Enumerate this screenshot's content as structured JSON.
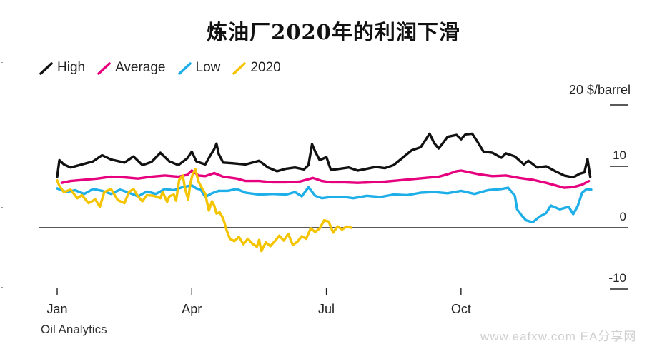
{
  "title": "炼油厂2020年的利润下滑",
  "source": "Oil Analytics",
  "watermark": "www.eafxw.com  EA分享网",
  "chart_data": {
    "type": "line",
    "unit_label": "20 $/barrel",
    "ylim": [
      -12,
      21
    ],
    "yticks": [
      {
        "value": 20,
        "label": ""
      },
      {
        "value": 10,
        "label": "10"
      },
      {
        "value": 0,
        "label": "0"
      },
      {
        "value": -10,
        "label": "-10"
      }
    ],
    "xlim": [
      0,
      12
    ],
    "xticks": [
      {
        "value": 0,
        "label": "Jan"
      },
      {
        "value": 3,
        "label": "Apr"
      },
      {
        "value": 6,
        "label": "Jul"
      },
      {
        "value": 9,
        "label": "Oct"
      }
    ],
    "series": [
      {
        "name": "High",
        "color": "#111111",
        "points": [
          [
            0,
            8.3
          ],
          [
            0.05,
            11
          ],
          [
            0.15,
            10.3
          ],
          [
            0.3,
            9.8
          ],
          [
            0.5,
            10.2
          ],
          [
            0.8,
            10.8
          ],
          [
            1.0,
            11.8
          ],
          [
            1.2,
            11.1
          ],
          [
            1.5,
            10.6
          ],
          [
            1.7,
            11.6
          ],
          [
            1.9,
            10.2
          ],
          [
            2.1,
            10.7
          ],
          [
            2.3,
            12.2
          ],
          [
            2.5,
            10.8
          ],
          [
            2.7,
            10.2
          ],
          [
            2.9,
            11.3
          ],
          [
            3.0,
            12.4
          ],
          [
            3.1,
            10.8
          ],
          [
            3.3,
            10.3
          ],
          [
            3.4,
            11.6
          ],
          [
            3.5,
            12.8
          ],
          [
            3.55,
            13.7
          ],
          [
            3.6,
            12.0
          ],
          [
            3.7,
            10.6
          ],
          [
            3.9,
            10.5
          ],
          [
            4.2,
            10.3
          ],
          [
            4.5,
            10.9
          ],
          [
            4.7,
            9.8
          ],
          [
            4.9,
            9.2
          ],
          [
            5.1,
            9.6
          ],
          [
            5.3,
            9.8
          ],
          [
            5.5,
            9.5
          ],
          [
            5.6,
            10.2
          ],
          [
            5.68,
            13.6
          ],
          [
            5.75,
            12.4
          ],
          [
            5.85,
            11.0
          ],
          [
            6.0,
            11.5
          ],
          [
            6.1,
            9.4
          ],
          [
            6.3,
            9.6
          ],
          [
            6.5,
            9.8
          ],
          [
            6.7,
            9.3
          ],
          [
            6.9,
            9.6
          ],
          [
            7.1,
            9.9
          ],
          [
            7.3,
            9.7
          ],
          [
            7.5,
            10.2
          ],
          [
            7.7,
            11.4
          ],
          [
            7.9,
            12.6
          ],
          [
            8.1,
            13.1
          ],
          [
            8.3,
            15.3
          ],
          [
            8.4,
            13.8
          ],
          [
            8.5,
            12.9
          ],
          [
            8.6,
            13.8
          ],
          [
            8.7,
            14.8
          ],
          [
            8.9,
            15.1
          ],
          [
            9.0,
            14.4
          ],
          [
            9.1,
            15.2
          ],
          [
            9.25,
            15.3
          ],
          [
            9.4,
            13.6
          ],
          [
            9.5,
            12.4
          ],
          [
            9.7,
            12.2
          ],
          [
            9.9,
            11.4
          ],
          [
            10.0,
            12.1
          ],
          [
            10.2,
            11.6
          ],
          [
            10.4,
            10.3
          ],
          [
            10.5,
            10.9
          ],
          [
            10.7,
            9.8
          ],
          [
            10.9,
            10.0
          ],
          [
            11.1,
            9.2
          ],
          [
            11.3,
            8.5
          ],
          [
            11.5,
            8.2
          ],
          [
            11.65,
            8.8
          ],
          [
            11.75,
            9.0
          ],
          [
            11.82,
            11.2
          ],
          [
            11.88,
            8.3
          ]
        ]
      },
      {
        "name": "Average",
        "color": "#e6007e",
        "points": [
          [
            0.1,
            7.3
          ],
          [
            0.3,
            7.6
          ],
          [
            0.6,
            7.8
          ],
          [
            0.9,
            8.0
          ],
          [
            1.2,
            8.3
          ],
          [
            1.5,
            8.2
          ],
          [
            1.8,
            8.0
          ],
          [
            2.1,
            8.3
          ],
          [
            2.4,
            8.5
          ],
          [
            2.7,
            8.3
          ],
          [
            2.9,
            8.6
          ],
          [
            3.0,
            9.3
          ],
          [
            3.15,
            8.5
          ],
          [
            3.3,
            8.4
          ],
          [
            3.5,
            8.9
          ],
          [
            3.7,
            8.3
          ],
          [
            4.0,
            8.0
          ],
          [
            4.2,
            7.6
          ],
          [
            4.5,
            7.6
          ],
          [
            4.8,
            7.4
          ],
          [
            5.1,
            7.4
          ],
          [
            5.4,
            7.5
          ],
          [
            5.7,
            8.1
          ],
          [
            5.9,
            7.6
          ],
          [
            6.1,
            7.4
          ],
          [
            6.4,
            7.4
          ],
          [
            6.7,
            7.3
          ],
          [
            7.0,
            7.4
          ],
          [
            7.3,
            7.5
          ],
          [
            7.6,
            7.7
          ],
          [
            7.9,
            7.9
          ],
          [
            8.2,
            8.1
          ],
          [
            8.5,
            8.3
          ],
          [
            8.7,
            8.7
          ],
          [
            8.9,
            9.2
          ],
          [
            9.0,
            9.3
          ],
          [
            9.2,
            9.0
          ],
          [
            9.4,
            8.7
          ],
          [
            9.7,
            8.4
          ],
          [
            10.0,
            8.5
          ],
          [
            10.3,
            8.1
          ],
          [
            10.6,
            7.8
          ],
          [
            10.9,
            7.3
          ],
          [
            11.1,
            6.9
          ],
          [
            11.3,
            6.5
          ],
          [
            11.5,
            6.6
          ],
          [
            11.7,
            7.0
          ],
          [
            11.85,
            7.6
          ]
        ]
      },
      {
        "name": "Low",
        "color": "#1eaee8",
        "points": [
          [
            0,
            6.4
          ],
          [
            0.2,
            5.8
          ],
          [
            0.4,
            6.1
          ],
          [
            0.6,
            5.5
          ],
          [
            0.8,
            6.3
          ],
          [
            1.0,
            6.0
          ],
          [
            1.2,
            5.5
          ],
          [
            1.4,
            6.2
          ],
          [
            1.6,
            5.7
          ],
          [
            1.8,
            5.1
          ],
          [
            2.0,
            5.9
          ],
          [
            2.2,
            5.5
          ],
          [
            2.4,
            6.3
          ],
          [
            2.6,
            6.1
          ],
          [
            2.8,
            6.6
          ],
          [
            3.0,
            6.9
          ],
          [
            3.1,
            6.4
          ],
          [
            3.2,
            6.2
          ],
          [
            3.3,
            5.0
          ],
          [
            3.45,
            5.6
          ],
          [
            3.6,
            6.0
          ],
          [
            3.8,
            6.0
          ],
          [
            4.0,
            6.3
          ],
          [
            4.2,
            5.7
          ],
          [
            4.5,
            5.4
          ],
          [
            4.8,
            5.5
          ],
          [
            5.1,
            5.4
          ],
          [
            5.3,
            5.8
          ],
          [
            5.45,
            5.1
          ],
          [
            5.6,
            6.6
          ],
          [
            5.75,
            5.2
          ],
          [
            5.9,
            4.8
          ],
          [
            6.1,
            5.0
          ],
          [
            6.4,
            5.0
          ],
          [
            6.6,
            4.8
          ],
          [
            6.9,
            5.2
          ],
          [
            7.2,
            5.0
          ],
          [
            7.5,
            5.4
          ],
          [
            7.8,
            5.3
          ],
          [
            8.1,
            5.7
          ],
          [
            8.4,
            5.8
          ],
          [
            8.7,
            5.6
          ],
          [
            9.0,
            6.0
          ],
          [
            9.3,
            5.5
          ],
          [
            9.6,
            6.1
          ],
          [
            9.9,
            6.3
          ],
          [
            10.05,
            6.5
          ],
          [
            10.2,
            5.2
          ],
          [
            10.25,
            3.0
          ],
          [
            10.35,
            2.0
          ],
          [
            10.45,
            1.2
          ],
          [
            10.6,
            0.9
          ],
          [
            10.75,
            1.8
          ],
          [
            10.9,
            2.4
          ],
          [
            11.0,
            3.6
          ],
          [
            11.2,
            3.0
          ],
          [
            11.4,
            3.4
          ],
          [
            11.5,
            2.2
          ],
          [
            11.6,
            3.5
          ],
          [
            11.7,
            5.7
          ],
          [
            11.8,
            6.3
          ],
          [
            11.9,
            6.2
          ]
        ]
      },
      {
        "name": "2020",
        "color": "#f5c400",
        "points": [
          [
            0,
            7.7
          ],
          [
            0.05,
            6.8
          ],
          [
            0.15,
            5.8
          ],
          [
            0.3,
            6.2
          ],
          [
            0.45,
            4.8
          ],
          [
            0.55,
            5.3
          ],
          [
            0.7,
            4.0
          ],
          [
            0.85,
            4.6
          ],
          [
            0.95,
            3.4
          ],
          [
            1.05,
            5.8
          ],
          [
            1.2,
            6.3
          ],
          [
            1.35,
            4.5
          ],
          [
            1.5,
            4.0
          ],
          [
            1.6,
            5.8
          ],
          [
            1.7,
            6.3
          ],
          [
            1.8,
            5.1
          ],
          [
            1.9,
            4.3
          ],
          [
            2.0,
            5.3
          ],
          [
            2.15,
            5.2
          ],
          [
            2.3,
            4.8
          ],
          [
            2.35,
            5.8
          ],
          [
            2.45,
            4.2
          ],
          [
            2.5,
            5.1
          ],
          [
            2.6,
            5.4
          ],
          [
            2.65,
            4.4
          ],
          [
            2.72,
            7.8
          ],
          [
            2.8,
            8.5
          ],
          [
            2.85,
            6.3
          ],
          [
            2.92,
            4.6
          ],
          [
            2.97,
            7.3
          ],
          [
            3.02,
            8.7
          ],
          [
            3.08,
            9.5
          ],
          [
            3.15,
            7.5
          ],
          [
            3.2,
            6.8
          ],
          [
            3.3,
            5.5
          ],
          [
            3.38,
            2.8
          ],
          [
            3.45,
            4.3
          ],
          [
            3.5,
            3.6
          ],
          [
            3.55,
            2.3
          ],
          [
            3.62,
            2.5
          ],
          [
            3.7,
            1.5
          ],
          [
            3.78,
            -0.5
          ],
          [
            3.85,
            -1.8
          ],
          [
            3.95,
            -2.2
          ],
          [
            4.05,
            -1.5
          ],
          [
            4.15,
            -2.7
          ],
          [
            4.25,
            -1.8
          ],
          [
            4.35,
            -2.6
          ],
          [
            4.45,
            -3.1
          ],
          [
            4.5,
            -2.0
          ],
          [
            4.55,
            -3.8
          ],
          [
            4.65,
            -2.4
          ],
          [
            4.75,
            -3.0
          ],
          [
            4.85,
            -2.2
          ],
          [
            4.95,
            -1.3
          ],
          [
            5.05,
            -2.1
          ],
          [
            5.15,
            -1.0
          ],
          [
            5.25,
            -2.8
          ],
          [
            5.35,
            -2.3
          ],
          [
            5.45,
            -1.4
          ],
          [
            5.55,
            -1.8
          ],
          [
            5.65,
            -0.1
          ],
          [
            5.75,
            -0.7
          ],
          [
            5.85,
            -0.1
          ],
          [
            5.95,
            1.2
          ],
          [
            6.05,
            1.0
          ],
          [
            6.15,
            -0.8
          ],
          [
            6.25,
            0.2
          ],
          [
            6.35,
            -0.3
          ],
          [
            6.45,
            0.2
          ],
          [
            6.55,
            0.0
          ]
        ]
      }
    ]
  }
}
